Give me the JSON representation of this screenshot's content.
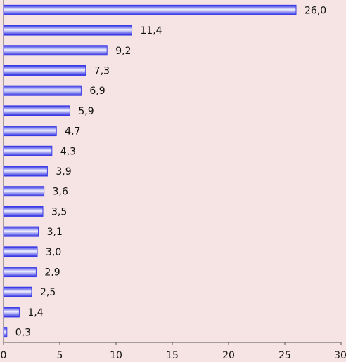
{
  "chart_data": {
    "type": "bar",
    "orientation": "horizontal",
    "categories": [
      null,
      null,
      null,
      null,
      null,
      null,
      null,
      null,
      null,
      null,
      null,
      null,
      null,
      null,
      null,
      null,
      null
    ],
    "values": [
      26.0,
      11.4,
      9.2,
      7.3,
      6.9,
      5.9,
      4.7,
      4.3,
      3.9,
      3.6,
      3.5,
      3.1,
      3.0,
      2.9,
      2.5,
      1.4,
      0.3
    ],
    "value_labels": [
      "26,0",
      "11,4",
      "9,2",
      "7,3",
      "6,9",
      "5,9",
      "4,7",
      "4,3",
      "3,9",
      "3,6",
      "3,5",
      "3,1",
      "3,0",
      "2,9",
      "2,5",
      "1,4",
      "0,3"
    ],
    "color": "#3a3ae8",
    "xlim": [
      0,
      30
    ],
    "xticks": [
      0,
      5,
      10,
      15,
      20,
      25,
      30
    ],
    "grid": false
  }
}
